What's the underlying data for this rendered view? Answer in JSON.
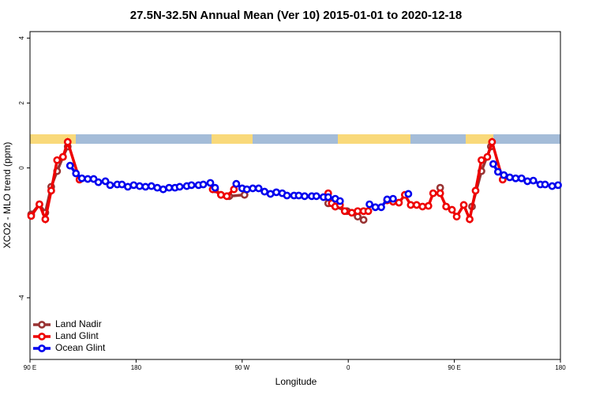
{
  "chart_data": {
    "type": "line",
    "title": "27.5N-32.5N Annual Mean (Ver 10)   2015-01-01 to 2020-12-18",
    "x_label": "Longitude",
    "y_label": "XCO2 - MLO trend (ppm)",
    "xlim": [
      90,
      540
    ],
    "xticks": [
      {
        "value": 90,
        "label": "90 E"
      },
      {
        "value": 180,
        "label": "180"
      },
      {
        "value": 270,
        "label": "90 W"
      },
      {
        "value": 360,
        "label": "0"
      },
      {
        "value": 450,
        "label": "90 E"
      },
      {
        "value": 540,
        "label": "180"
      }
    ],
    "ylim": [
      -5.9,
      4.2
    ],
    "yticks": [
      4,
      2,
      0,
      -4
    ],
    "legend": "bottomleft",
    "series": [
      {
        "name": "Land Nadir",
        "color": "#993333",
        "x": [
          91,
          98,
          103,
          108,
          113,
          118,
          122,
          null,
          247,
          252,
          259,
          272,
          null,
          343,
          349,
          359,
          368,
          373,
          null,
          438,
          null,
          465,
          473,
          481
        ],
        "values": [
          -1.43,
          -1.12,
          -1.38,
          -0.58,
          -0.1,
          0.34,
          0.66,
          null,
          -0.66,
          -0.83,
          -0.87,
          -0.83,
          null,
          -1.09,
          -1.19,
          -1.33,
          -1.5,
          -1.6,
          null,
          -0.61,
          null,
          -1.19,
          -0.1,
          0.66
        ]
      },
      {
        "name": "Land Glint",
        "color": "#ee0000",
        "x": [
          91,
          98,
          103,
          108,
          113,
          118,
          122,
          132,
          null,
          245,
          252,
          257,
          263,
          null,
          343,
          346,
          349,
          353,
          357,
          363,
          368,
          373,
          377,
          null,
          393,
          398,
          403,
          408,
          413,
          418,
          423,
          428,
          432,
          438,
          443,
          448,
          452,
          458,
          463,
          468,
          473,
          478,
          482,
          491
        ],
        "values": [
          -1.48,
          -1.12,
          -1.58,
          -0.7,
          0.24,
          0.34,
          0.8,
          -0.36,
          null,
          -0.66,
          -0.83,
          -0.87,
          -0.66,
          null,
          -0.78,
          -1.09,
          -1.19,
          -1.14,
          -1.33,
          -1.38,
          -1.33,
          -1.33,
          -1.33,
          null,
          -1.0,
          -1.04,
          -1.07,
          -0.83,
          -1.14,
          -1.14,
          -1.19,
          -1.17,
          -0.78,
          -0.78,
          -1.19,
          -1.29,
          -1.5,
          -1.14,
          -1.58,
          -0.7,
          0.24,
          0.34,
          0.8,
          -0.36
        ]
      },
      {
        "name": "Ocean Glint",
        "color": "#0000ee",
        "x": [
          124,
          129,
          134,
          139,
          144,
          148,
          154,
          158,
          164,
          168,
          173,
          178,
          183,
          188,
          193,
          198,
          203,
          208,
          213,
          217,
          223,
          227,
          233,
          237,
          243,
          247,
          null,
          265,
          270,
          274,
          279,
          284,
          289,
          294,
          299,
          304,
          308,
          314,
          318,
          323,
          329,
          333,
          339,
          343,
          349,
          353,
          null,
          378,
          383,
          388,
          393,
          398,
          null,
          411,
          null,
          483,
          487,
          492,
          497,
          502,
          507,
          512,
          517,
          523,
          527,
          533,
          538
        ],
        "values": [
          0.07,
          -0.17,
          -0.32,
          -0.34,
          -0.34,
          -0.44,
          -0.41,
          -0.53,
          -0.51,
          -0.51,
          -0.58,
          -0.53,
          -0.56,
          -0.58,
          -0.56,
          -0.61,
          -0.66,
          -0.61,
          -0.61,
          -0.58,
          -0.56,
          -0.53,
          -0.53,
          -0.51,
          -0.46,
          -0.61,
          null,
          -0.49,
          -0.63,
          -0.66,
          -0.63,
          -0.63,
          -0.73,
          -0.8,
          -0.75,
          -0.78,
          -0.85,
          -0.85,
          -0.85,
          -0.87,
          -0.87,
          -0.87,
          -0.9,
          -0.9,
          -0.95,
          -1.02,
          null,
          -1.12,
          -1.21,
          -1.21,
          -0.97,
          -0.95,
          null,
          -0.8,
          null,
          0.12,
          -0.12,
          -0.22,
          -0.29,
          -0.32,
          -0.32,
          -0.41,
          -0.39,
          -0.51,
          -0.51,
          -0.56,
          -0.53
        ]
      }
    ]
  }
}
